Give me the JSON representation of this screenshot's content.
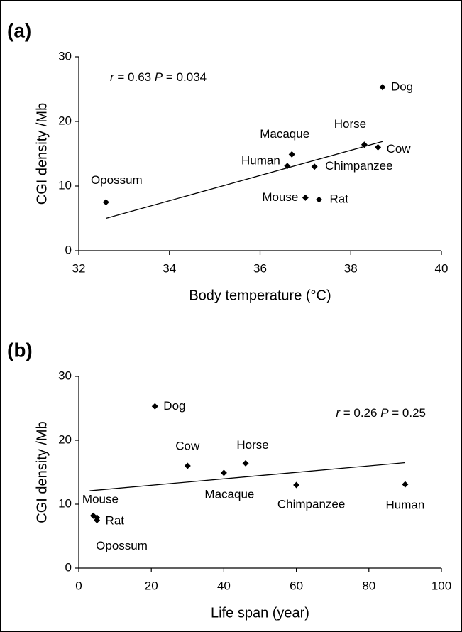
{
  "chart_data": [
    {
      "type": "scatter",
      "panel_label": "(a)",
      "x_label": "Body temperature (°C)",
      "y_label": "CGI density /Mb",
      "annotation": [
        {
          "text": "r",
          "italic": true
        },
        {
          "text": " = 0.63  "
        },
        {
          "text": "P",
          "italic": true
        },
        {
          "text": " = 0.034"
        }
      ],
      "labels": [
        "Dog",
        "Horse",
        "Cow",
        "Macaque",
        "Human",
        "Chimpanzee",
        "Mouse",
        "Rat",
        "Opossum"
      ],
      "x": [
        38.7,
        38.3,
        38.6,
        36.7,
        36.6,
        37.2,
        37.0,
        37.3,
        32.6
      ],
      "y": [
        25.3,
        16.4,
        16.0,
        14.9,
        13.1,
        13.0,
        8.2,
        7.9,
        7.5
      ],
      "trendline": {
        "x": [
          32.6,
          38.7
        ],
        "y": [
          5.0,
          16.9
        ]
      },
      "color": "#000000",
      "xlim": [
        32,
        40
      ],
      "xticks": [
        32,
        34,
        36,
        38,
        40
      ],
      "ylim": [
        0,
        30
      ],
      "yticks": [
        0,
        10,
        20,
        30
      ]
    },
    {
      "type": "scatter",
      "panel_label": "(b)",
      "x_label": "Life span (year)",
      "y_label": "CGI density /Mb",
      "annotation": [
        {
          "text": "r",
          "italic": true
        },
        {
          "text": " = 0.26  "
        },
        {
          "text": "P",
          "italic": true
        },
        {
          "text": " = 0.25"
        }
      ],
      "labels": [
        "Dog",
        "Horse",
        "Cow",
        "Macaque",
        "Human",
        "Chimpanzee",
        "Mouse",
        "Rat",
        "Opossum"
      ],
      "x": [
        21,
        46,
        30,
        40,
        90,
        60,
        4,
        5,
        5
      ],
      "y": [
        25.3,
        16.4,
        16.0,
        14.9,
        13.1,
        13.0,
        8.2,
        7.9,
        7.5
      ],
      "trendline": {
        "x": [
          3,
          90
        ],
        "y": [
          12.1,
          16.5
        ]
      },
      "color": "#000000",
      "xlim": [
        0,
        100
      ],
      "xticks": [
        0,
        20,
        40,
        60,
        80,
        100
      ],
      "ylim": [
        0,
        30
      ],
      "yticks": [
        0,
        10,
        20,
        30
      ]
    }
  ]
}
